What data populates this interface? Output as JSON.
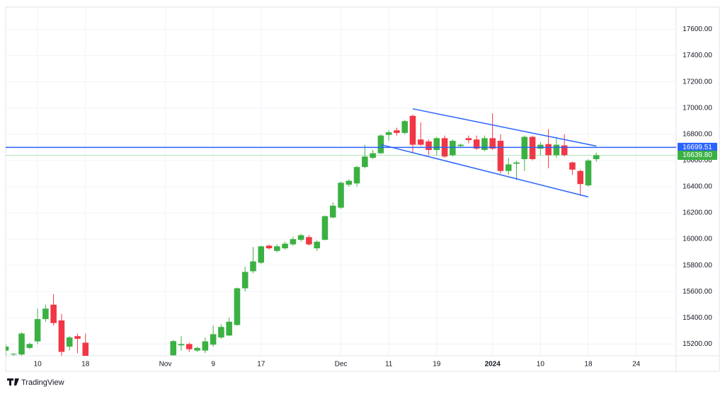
{
  "chart_data": {
    "type": "candlestick",
    "brand": "TradingView",
    "categories": [
      null,
      null,
      null,
      null,
      "10",
      null,
      null,
      null,
      null,
      null,
      "18",
      null,
      null,
      null,
      null,
      null,
      null,
      null,
      null,
      null,
      "Nov",
      null,
      null,
      null,
      null,
      null,
      "9",
      null,
      null,
      null,
      null,
      null,
      "17",
      null,
      null,
      null,
      null,
      null,
      null,
      null,
      null,
      null,
      "Dec",
      null,
      null,
      null,
      null,
      null,
      "11",
      null,
      null,
      null,
      null,
      null,
      "19",
      null,
      null,
      null,
      null,
      null,
      null,
      "2024",
      null,
      null,
      null,
      null,
      null,
      "10",
      null,
      null,
      null,
      null,
      null,
      "18",
      null,
      null,
      null,
      null,
      null,
      "24",
      null,
      null,
      null,
      null
    ],
    "open": [
      15150,
      15120,
      15120,
      15170,
      15220,
      15390,
      15500,
      15380,
      15180,
      15260,
      15210,
      null,
      null,
      null,
      null,
      null,
      null,
      null,
      null,
      null,
      null,
      15114,
      15190,
      15200,
      15150,
      15150,
      15195,
      15250,
      15265,
      15345,
      15625,
      15755,
      15820,
      15950,
      15910,
      15930,
      15960,
      15995,
      16015,
      15930,
      15995,
      16165,
      16240,
      16415,
      16425,
      16550,
      16620,
      16655,
      16795,
      16830,
      16810,
      16940,
      16760,
      16745,
      16680,
      16770,
      16640,
      16710,
      16770,
      16760,
      16680,
      16770,
      16750,
      16520,
      16575,
      16610,
      16780,
      16690,
      16725,
      16640,
      16715,
      16585,
      16520,
      16410,
      16610,
      null,
      null,
      null,
      null,
      null,
      null,
      null,
      null,
      null
    ],
    "high": [
      15200,
      15130,
      15290,
      15210,
      15470,
      15500,
      15580,
      15430,
      15260,
      15280,
      15280,
      null,
      null,
      null,
      null,
      null,
      null,
      null,
      null,
      null,
      null,
      15230,
      15260,
      15210,
      15180,
      15250,
      15340,
      15350,
      15400,
      15630,
      15790,
      15940,
      15950,
      15960,
      15960,
      15980,
      16020,
      16040,
      16030,
      15990,
      16180,
      16280,
      16440,
      16455,
      16560,
      16720,
      16680,
      16800,
      16830,
      16850,
      16910,
      16950,
      16890,
      16760,
      16780,
      16790,
      16760,
      16730,
      16790,
      16790,
      16790,
      16960,
      16800,
      16620,
      16600,
      16790,
      16790,
      16740,
      16840,
      16780,
      16800,
      16590,
      16530,
      16610,
      16660,
      null,
      null,
      null,
      null,
      null,
      null,
      null,
      null,
      null
    ],
    "low": [
      15110,
      15110,
      15110,
      15160,
      15200,
      15370,
      15340,
      15110,
      15150,
      15130,
      15110,
      null,
      null,
      null,
      null,
      null,
      null,
      null,
      null,
      null,
      null,
      15110,
      15150,
      15140,
      15140,
      15130,
      15180,
      15240,
      15260,
      15340,
      15600,
      15740,
      15810,
      15920,
      15900,
      15920,
      15950,
      15980,
      15950,
      15910,
      15990,
      16160,
      16230,
      16400,
      16400,
      16540,
      16610,
      16650,
      16750,
      16790,
      16800,
      16660,
      16710,
      16640,
      16640,
      16620,
      16630,
      16700,
      16730,
      16680,
      16670,
      16680,
      16500,
      16490,
      16450,
      16520,
      16600,
      16640,
      16540,
      16620,
      16630,
      16490,
      16330,
      16400,
      16590,
      null,
      null,
      null,
      null,
      null,
      null,
      null,
      null,
      null
    ],
    "close": [
      15180,
      15125,
      15280,
      15200,
      15390,
      15470,
      15360,
      15140,
      15250,
      15240,
      15110,
      null,
      null,
      null,
      null,
      null,
      null,
      null,
      null,
      null,
      null,
      15222,
      15200,
      15160,
      15170,
      15220,
      15275,
      15330,
      15370,
      15625,
      15750,
      15830,
      15945,
      15930,
      15945,
      15965,
      16000,
      16030,
      15960,
      15980,
      16175,
      16255,
      16430,
      16445,
      16550,
      16630,
      16655,
      16790,
      16815,
      16810,
      16900,
      16720,
      16720,
      16680,
      16770,
      16630,
      16750,
      16720,
      16755,
      16690,
      16770,
      16690,
      16520,
      16570,
      16585,
      16780,
      16610,
      16720,
      16640,
      16720,
      16640,
      16530,
      16420,
      16600,
      16639.8,
      null,
      null,
      null,
      null,
      null,
      null,
      null,
      null,
      null
    ],
    "up_color": "#3bb143",
    "down_color": "#f23645",
    "trendlines": [
      {
        "color": "#2962ff",
        "values": [
          null,
          null,
          null,
          null,
          null,
          null,
          null,
          null,
          null,
          null,
          null,
          null,
          null,
          null,
          null,
          null,
          null,
          null,
          null,
          null,
          null,
          null,
          null,
          null,
          null,
          null,
          null,
          null,
          null,
          null,
          null,
          null,
          null,
          null,
          null,
          null,
          null,
          null,
          null,
          null,
          null,
          null,
          null,
          null,
          null,
          null,
          null,
          null,
          null,
          null,
          null,
          16994,
          null,
          null,
          null,
          null,
          null,
          null,
          null,
          null,
          null,
          null,
          null,
          null,
          null,
          null,
          null,
          null,
          null,
          null,
          null,
          null,
          null,
          null,
          16710,
          null,
          null,
          null,
          null,
          null,
          null,
          null,
          null,
          null
        ]
      },
      {
        "color": "#2962ff",
        "values": [
          null,
          null,
          null,
          null,
          null,
          null,
          null,
          null,
          null,
          null,
          null,
          null,
          null,
          null,
          null,
          null,
          null,
          null,
          null,
          null,
          null,
          null,
          null,
          null,
          null,
          null,
          null,
          null,
          null,
          null,
          null,
          null,
          null,
          null,
          null,
          null,
          null,
          null,
          null,
          null,
          null,
          null,
          null,
          null,
          null,
          null,
          null,
          16721,
          null,
          null,
          null,
          null,
          null,
          null,
          null,
          null,
          null,
          null,
          null,
          null,
          null,
          null,
          null,
          null,
          null,
          null,
          null,
          null,
          null,
          null,
          null,
          null,
          null,
          16322,
          null,
          null,
          null,
          null,
          null,
          null,
          null,
          null,
          null,
          null
        ]
      }
    ],
    "price_lines": [
      {
        "value": 16699.51,
        "color": "#2962ff"
      },
      {
        "value": 16639.8,
        "label": "16639.80",
        "color": "#3bb143"
      }
    ],
    "ylim": [
      15110,
      17770
    ],
    "yticks": [
      {
        "value": 15200,
        "label": "15200.00"
      },
      {
        "value": 15400,
        "label": "15400.00"
      },
      {
        "value": 15600,
        "label": "15600.00"
      },
      {
        "value": 15800,
        "label": "15800.00"
      },
      {
        "value": 16000,
        "label": "16000.00"
      },
      {
        "value": 16200,
        "label": "16200.00"
      },
      {
        "value": 16400,
        "label": "16400.00"
      },
      {
        "value": 16600,
        "label": "16600.00"
      },
      {
        "value": 16800,
        "label": "16800.00"
      },
      {
        "value": 17000,
        "label": "17000.00"
      },
      {
        "value": 17200,
        "label": "17200.00"
      },
      {
        "value": 17400,
        "label": "17400.00"
      },
      {
        "value": 17600,
        "label": "17600.00"
      }
    ],
    "grid": true
  }
}
